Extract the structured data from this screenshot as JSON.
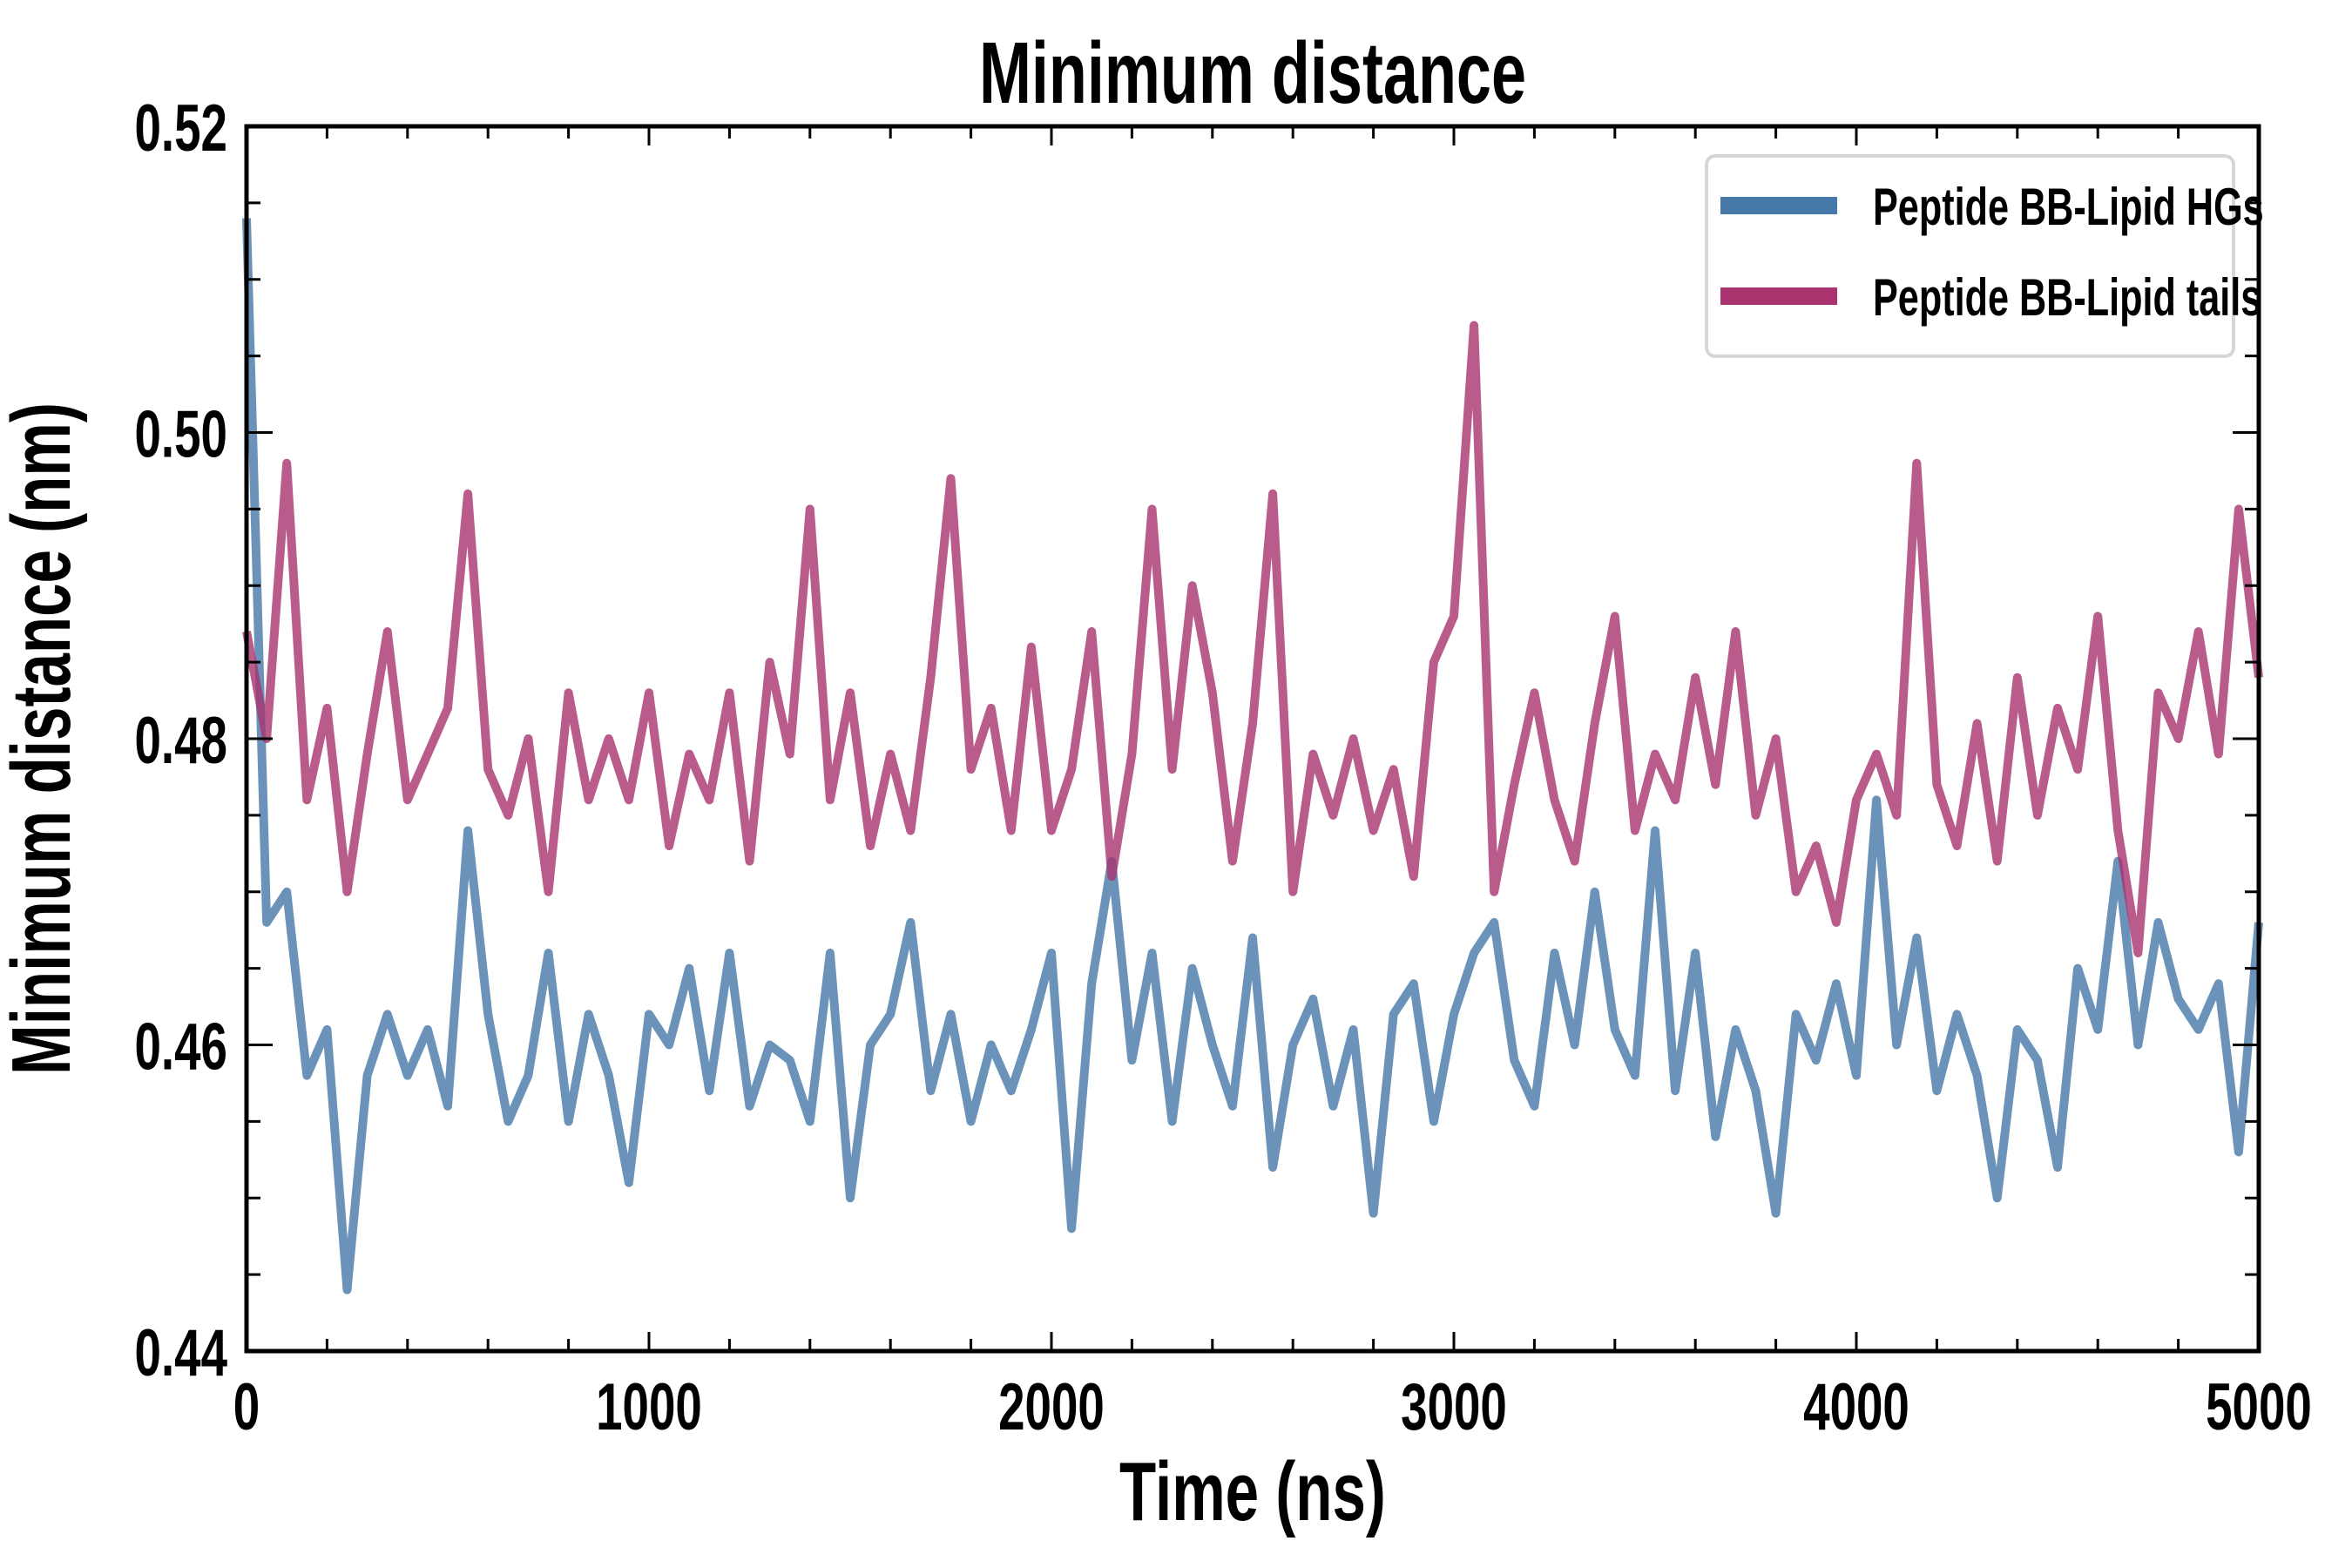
{
  "chart_data": {
    "type": "line",
    "title": "Minimum distance",
    "xlabel": "Time (ns)",
    "ylabel": "Minimum distance (nm)",
    "xlim": [
      0,
      5000
    ],
    "ylim": [
      0.44,
      0.52
    ],
    "xticks": [
      "0",
      "1000",
      "2000",
      "3000",
      "4000",
      "5000"
    ],
    "yticks": [
      "0.44",
      "0.46",
      "0.48",
      "0.50",
      "0.52"
    ],
    "grid": false,
    "legend_position": "top-right",
    "x": [
      0,
      50,
      100,
      150,
      200,
      250,
      300,
      350,
      400,
      450,
      500,
      550,
      600,
      650,
      700,
      750,
      800,
      850,
      900,
      950,
      1000,
      1050,
      1100,
      1150,
      1200,
      1250,
      1300,
      1350,
      1400,
      1450,
      1500,
      1550,
      1600,
      1650,
      1700,
      1750,
      1800,
      1850,
      1900,
      1950,
      2000,
      2050,
      2100,
      2150,
      2200,
      2250,
      2300,
      2350,
      2400,
      2450,
      2500,
      2550,
      2600,
      2650,
      2700,
      2750,
      2800,
      2850,
      2900,
      2950,
      3000,
      3050,
      3100,
      3150,
      3200,
      3250,
      3300,
      3350,
      3400,
      3450,
      3500,
      3550,
      3600,
      3650,
      3700,
      3750,
      3800,
      3850,
      3900,
      3950,
      4000,
      4050,
      4100,
      4150,
      4200,
      4250,
      4300,
      4350,
      4400,
      4450,
      4500,
      4550,
      4600,
      4650,
      4700,
      4750,
      4800,
      4850,
      4900,
      4950,
      5000
    ],
    "series": [
      {
        "name": "Peptide BB-Lipid HGs",
        "color": "#4678a8",
        "values": [
          0.514,
          0.468,
          0.47,
          0.458,
          0.461,
          0.444,
          0.458,
          0.462,
          0.458,
          0.461,
          0.456,
          0.474,
          0.462,
          0.455,
          0.458,
          0.466,
          0.455,
          0.462,
          0.458,
          0.451,
          0.462,
          0.46,
          0.465,
          0.457,
          0.466,
          0.456,
          0.46,
          0.459,
          0.455,
          0.466,
          0.45,
          0.46,
          0.462,
          0.468,
          0.457,
          0.462,
          0.455,
          0.46,
          0.457,
          0.461,
          0.466,
          0.448,
          0.464,
          0.472,
          0.459,
          0.466,
          0.455,
          0.465,
          0.46,
          0.456,
          0.467,
          0.452,
          0.46,
          0.463,
          0.456,
          0.461,
          0.449,
          0.462,
          0.464,
          0.455,
          0.462,
          0.466,
          0.468,
          0.459,
          0.456,
          0.466,
          0.46,
          0.47,
          0.461,
          0.458,
          0.474,
          0.457,
          0.466,
          0.454,
          0.461,
          0.457,
          0.449,
          0.462,
          0.459,
          0.464,
          0.458,
          0.476,
          0.46,
          0.467,
          0.457,
          0.462,
          0.458,
          0.45,
          0.461,
          0.459,
          0.452,
          0.465,
          0.461,
          0.472,
          0.46,
          0.468,
          0.463,
          0.461,
          0.464,
          0.453,
          0.468
        ]
      },
      {
        "name": "Peptide BB-Lipid tails",
        "color": "#a8336f",
        "values": [
          0.487,
          0.48,
          0.498,
          0.476,
          0.482,
          0.47,
          0.479,
          0.487,
          0.476,
          0.479,
          0.482,
          0.496,
          0.478,
          0.475,
          0.48,
          0.47,
          0.483,
          0.476,
          0.48,
          0.476,
          0.483,
          0.473,
          0.479,
          0.476,
          0.483,
          0.472,
          0.485,
          0.479,
          0.495,
          0.476,
          0.483,
          0.473,
          0.479,
          0.474,
          0.484,
          0.497,
          0.478,
          0.482,
          0.474,
          0.486,
          0.474,
          0.478,
          0.487,
          0.471,
          0.479,
          0.495,
          0.478,
          0.49,
          0.483,
          0.472,
          0.481,
          0.496,
          0.47,
          0.479,
          0.475,
          0.48,
          0.474,
          0.478,
          0.471,
          0.485,
          0.488,
          0.507,
          0.47,
          0.477,
          0.483,
          0.476,
          0.472,
          0.481,
          0.488,
          0.474,
          0.479,
          0.476,
          0.484,
          0.477,
          0.487,
          0.475,
          0.48,
          0.47,
          0.473,
          0.468,
          0.476,
          0.479,
          0.475,
          0.498,
          0.477,
          0.473,
          0.481,
          0.472,
          0.484,
          0.475,
          0.482,
          0.478,
          0.488,
          0.474,
          0.466,
          0.483,
          0.48,
          0.487,
          0.479,
          0.495,
          0.484
        ]
      }
    ]
  }
}
